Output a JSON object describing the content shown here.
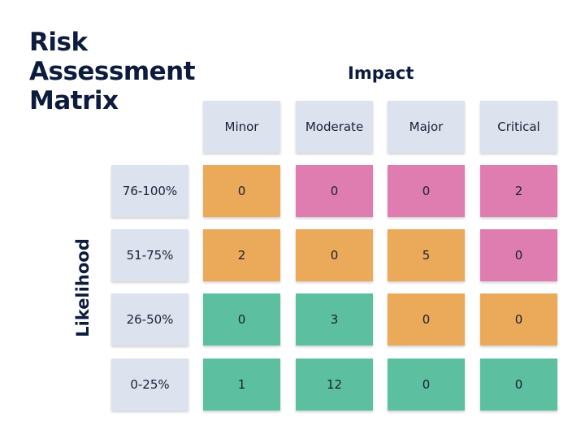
{
  "title_lines": [
    "Risk",
    "Assessment",
    "Matrix"
  ],
  "axes": {
    "impact_label": "Impact",
    "likelihood_label": "Likelihood"
  },
  "columns": [
    "Minor",
    "Moderate",
    "Major",
    "Critical"
  ],
  "rows": [
    {
      "label": "76-100%",
      "values": [
        "0",
        "0",
        "0",
        "2"
      ],
      "colors": [
        "orange",
        "pink",
        "pink",
        "pink"
      ]
    },
    {
      "label": "51-75%",
      "values": [
        "2",
        "0",
        "5",
        "0"
      ],
      "colors": [
        "orange",
        "orange",
        "orange",
        "pink"
      ]
    },
    {
      "label": "26-50%",
      "values": [
        "0",
        "3",
        "0",
        "0"
      ],
      "colors": [
        "green",
        "green",
        "orange",
        "orange"
      ]
    },
    {
      "label": "0-25%",
      "values": [
        "1",
        "12",
        "0",
        "0"
      ],
      "colors": [
        "green",
        "green",
        "green",
        "green"
      ]
    }
  ],
  "palette": {
    "green": "#5cbf9f",
    "orange": "#eba95a",
    "pink": "#df7db0",
    "header": "#dde2ef",
    "title": "#0d1b3e"
  }
}
